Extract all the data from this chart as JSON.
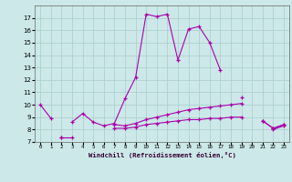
{
  "xlabel": "Windchill (Refroidissement éolien,°C)",
  "background_color": "#cce8e8",
  "grid_color": "#aacccc",
  "line_color": "#aa00aa",
  "x": [
    0,
    1,
    2,
    3,
    4,
    5,
    6,
    7,
    8,
    9,
    10,
    11,
    12,
    13,
    14,
    15,
    16,
    17,
    18,
    19,
    20,
    21,
    22,
    23
  ],
  "line1": [
    10.0,
    8.9,
    null,
    8.6,
    9.3,
    8.6,
    8.3,
    8.5,
    10.5,
    12.2,
    17.3,
    17.1,
    17.3,
    13.6,
    16.1,
    16.3,
    15.0,
    12.8,
    null,
    10.6,
    null,
    8.7,
    8.1,
    8.4
  ],
  "line2": [
    null,
    null,
    7.4,
    7.4,
    null,
    null,
    null,
    8.4,
    8.3,
    8.5,
    8.8,
    9.0,
    9.2,
    9.4,
    9.6,
    9.7,
    9.8,
    9.9,
    10.0,
    10.1,
    null,
    8.7,
    8.1,
    8.4
  ],
  "line3": [
    null,
    null,
    7.4,
    null,
    null,
    null,
    null,
    8.1,
    8.1,
    8.2,
    8.4,
    8.5,
    8.6,
    8.7,
    8.8,
    8.8,
    8.9,
    8.9,
    9.0,
    9.0,
    null,
    null,
    8.0,
    8.3
  ],
  "ylim": [
    7,
    18
  ],
  "yticks": [
    7,
    8,
    9,
    10,
    11,
    12,
    13,
    14,
    15,
    16,
    17
  ],
  "xticks": [
    0,
    1,
    2,
    3,
    4,
    5,
    6,
    7,
    8,
    9,
    10,
    11,
    12,
    13,
    14,
    15,
    16,
    17,
    18,
    19,
    20,
    21,
    22,
    23
  ],
  "xlim": [
    -0.5,
    23.5
  ]
}
